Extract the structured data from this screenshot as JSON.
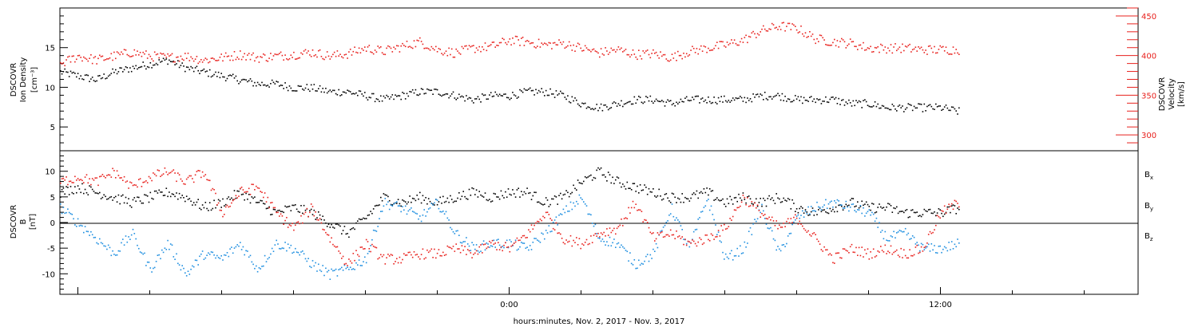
{
  "colors": {
    "black": "#000000",
    "red": "#e8211d",
    "blue": "#1f8fe0"
  },
  "xaxis": {
    "label": "hours:minutes, Nov.  2, 2017 - Nov.  3, 2017",
    "tick_labels": [
      "0:00",
      "12:00"
    ],
    "range_hours": [
      -12.5,
      17.5
    ]
  },
  "chart_data": [
    {
      "type": "scatter",
      "panel": "top",
      "left_axis": {
        "label_lines": [
          "DSCOVR",
          "Ion Density",
          "[cm⁻³]"
        ],
        "ticks": [
          5,
          10,
          15
        ],
        "range": [
          2,
          20
        ]
      },
      "right_axis": {
        "label_lines": [
          "DSCOVR",
          "Velocity",
          "[km/s]"
        ],
        "ticks": [
          300,
          350,
          400,
          450
        ],
        "range": [
          280,
          460
        ]
      },
      "series": [
        {
          "color": "black",
          "axis": "left",
          "x": [
            -12.5,
            -12,
            -11.5,
            -11,
            -10.5,
            -10,
            -9.5,
            -9,
            -8.5,
            -8,
            -7.5,
            -7,
            -6.5,
            -6,
            -5.5,
            -5,
            -4.5,
            -4,
            -3.5,
            -3,
            -2.5,
            -2,
            -1.5,
            -1,
            -0.5,
            0,
            0.5,
            1,
            1.5,
            2,
            2.5,
            3,
            3.5,
            4,
            4.5,
            5,
            5.5,
            6,
            6.5,
            7,
            7.5,
            8,
            8.5,
            9,
            9.5,
            10,
            10.5,
            11,
            11.5,
            12,
            12.5
          ],
          "y": [
            12,
            11.5,
            11,
            12,
            12.5,
            13,
            13.5,
            12.5,
            12,
            11.5,
            11,
            10.5,
            10.5,
            10,
            10,
            9.5,
            9.5,
            9,
            8.5,
            9,
            9.5,
            9.5,
            9,
            8.5,
            9,
            9,
            9.5,
            9.5,
            9,
            8,
            7.5,
            8,
            8.5,
            8.5,
            8,
            8.5,
            8.5,
            8.5,
            8.5,
            9,
            9,
            8.5,
            8.5,
            8.5,
            8,
            8,
            7.5,
            7.5,
            7.5,
            7.5,
            7
          ]
        },
        {
          "color": "red",
          "axis": "right",
          "x": [
            -12.5,
            -12,
            -11.5,
            -11,
            -10.5,
            -10,
            -9.5,
            -9,
            -8.5,
            -8,
            -7.5,
            -7,
            -6.5,
            -6,
            -5.5,
            -5,
            -4.5,
            -4,
            -3.5,
            -3,
            -2.5,
            -2,
            -1.5,
            -1,
            -0.5,
            0,
            0.5,
            1,
            1.5,
            2,
            2.5,
            3,
            3.5,
            4,
            4.5,
            5,
            5.5,
            6,
            6.5,
            7,
            7.5,
            8,
            8.5,
            9,
            9.5,
            10,
            10.5,
            11,
            11.5,
            12,
            12.5
          ],
          "y": [
            390,
            400,
            395,
            400,
            405,
            400,
            398,
            400,
            395,
            398,
            402,
            398,
            400,
            402,
            405,
            400,
            403,
            410,
            406,
            412,
            418,
            408,
            404,
            410,
            412,
            420,
            418,
            414,
            416,
            410,
            404,
            408,
            402,
            403,
            398,
            406,
            410,
            414,
            420,
            432,
            438,
            435,
            422,
            418,
            416,
            410,
            410,
            410,
            408,
            408,
            408
          ]
        }
      ]
    },
    {
      "type": "scatter",
      "panel": "bottom",
      "left_axis": {
        "label_lines": [
          "DSCOVR",
          "B",
          "[nT]"
        ],
        "ticks": [
          -10,
          -5,
          0,
          5,
          10
        ],
        "range": [
          -14,
          14
        ]
      },
      "legend": [
        {
          "label": "B",
          "sub": "x",
          "color": "black"
        },
        {
          "label": "B",
          "sub": "y",
          "color": "blue"
        },
        {
          "label": "B",
          "sub": "z",
          "color": "red"
        }
      ],
      "series": [
        {
          "color": "black",
          "x": [
            -12.5,
            -12,
            -11.5,
            -11,
            -10.5,
            -10,
            -9.5,
            -9,
            -8.5,
            -8,
            -7.5,
            -7,
            -6.5,
            -6,
            -5.5,
            -5,
            -4.5,
            -4,
            -3.5,
            -3,
            -2.5,
            -2,
            -1.5,
            -1,
            -0.5,
            0,
            0.5,
            1,
            1.5,
            2,
            2.5,
            3,
            3.5,
            4,
            4.5,
            5,
            5.5,
            6,
            6.5,
            7,
            7.5,
            8,
            8.5,
            9,
            9.5,
            10,
            10.5,
            11,
            11.5,
            12,
            12.5
          ],
          "y": [
            6,
            7,
            6,
            5,
            4,
            5,
            6,
            5,
            3,
            4,
            6,
            4,
            2,
            3,
            2,
            0,
            -2,
            1,
            5,
            4,
            5,
            4,
            5,
            6,
            5,
            6,
            6,
            4,
            5,
            8,
            10,
            8,
            7,
            6,
            5,
            5,
            6,
            4,
            5,
            4,
            5,
            3,
            2,
            3,
            4,
            3,
            3,
            2,
            2,
            2,
            3
          ]
        },
        {
          "color": "blue",
          "x": [
            -12.5,
            -12,
            -11.5,
            -11,
            -10.5,
            -10,
            -9.5,
            -9,
            -8.5,
            -8,
            -7.5,
            -7,
            -6.5,
            -6,
            -5.5,
            -5,
            -4.5,
            -4,
            -3.5,
            -3,
            -2.5,
            -2,
            -1.5,
            -1,
            -0.5,
            0,
            0.5,
            1,
            1.5,
            2,
            2.5,
            3,
            3.5,
            4,
            4.5,
            5,
            5.5,
            6,
            6.5,
            7,
            7.5,
            8,
            8.5,
            9,
            9.5,
            10,
            10.5,
            11,
            11.5,
            12,
            12.5
          ],
          "y": [
            3,
            0,
            -3,
            -6,
            -2,
            -9,
            -4,
            -10,
            -6,
            -7,
            -4,
            -9,
            -4,
            -5,
            -8,
            -10,
            -9,
            -7,
            4,
            3,
            1,
            4,
            -2,
            -5,
            -4,
            -4,
            -5,
            -2,
            2,
            5,
            -3,
            -4,
            -8,
            -6,
            3,
            -5,
            5,
            -7,
            -5,
            3,
            -6,
            1,
            3,
            4,
            3,
            2,
            -3,
            -2,
            -5,
            -5,
            -4
          ]
        },
        {
          "color": "red",
          "x": [
            -12.5,
            -12,
            -11.5,
            -11,
            -10.5,
            -10,
            -9.5,
            -9,
            -8.5,
            -8,
            -7.5,
            -7,
            -6.5,
            -6,
            -5.5,
            -5,
            -4.5,
            -4,
            -3.5,
            -3,
            -2.5,
            -2,
            -1.5,
            -1,
            -0.5,
            0,
            0.5,
            1,
            1.5,
            2,
            2.5,
            3,
            3.5,
            4,
            4.5,
            5,
            5.5,
            6,
            6.5,
            7,
            7.5,
            8,
            8.5,
            9,
            9.5,
            10,
            10.5,
            11,
            11.5,
            12,
            12.5
          ],
          "y": [
            8,
            9,
            8,
            10,
            7,
            9,
            10,
            8,
            10,
            2,
            6,
            7,
            2,
            -1,
            3,
            -3,
            -8,
            -4,
            -7,
            -7,
            -6,
            -6,
            -5,
            -6,
            -4,
            -5,
            -2,
            2,
            -3,
            -4,
            -2,
            -1,
            4,
            -3,
            -2,
            -4,
            -3,
            -1,
            5,
            2,
            -1,
            1,
            -3,
            -7,
            -5,
            -6,
            -5,
            -6,
            -5,
            2,
            4
          ]
        }
      ]
    }
  ]
}
